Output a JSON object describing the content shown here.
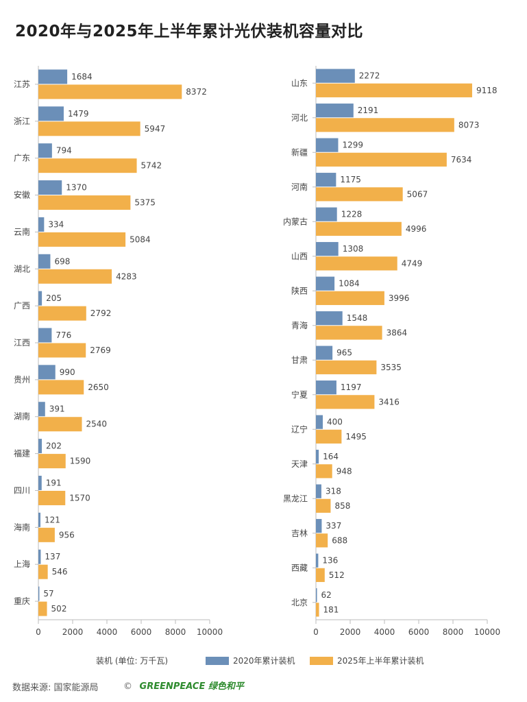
{
  "title": "2020年与2025年上半年累计光伏装机容量对比",
  "colors": {
    "series2020": "#6b8fb8",
    "series2025": "#f2b04a",
    "axis": "#bbbbbb",
    "label": "#444444"
  },
  "legend": {
    "axis_note": "装机 (单位: 万千瓦)",
    "series2020": "2020年累计装机",
    "series2025": "2025年上半年累计装机"
  },
  "footer": {
    "source": "数据来源: 国家能源局",
    "copyright": "©",
    "brand": "GREENPEACE 绿色和平"
  },
  "chart_data": [
    {
      "type": "bar",
      "orientation": "horizontal",
      "xlim": [
        0,
        10000
      ],
      "xticks": [
        0,
        2000,
        4000,
        6000,
        8000,
        10000
      ],
      "categories": [
        "江苏",
        "浙江",
        "广东",
        "安徽",
        "云南",
        "湖北",
        "广西",
        "江西",
        "贵州",
        "湖南",
        "福建",
        "四川",
        "海南",
        "上海",
        "重庆"
      ],
      "series": [
        {
          "name": "2020年累计装机",
          "values": [
            1684,
            1479,
            794,
            1370,
            334,
            698,
            205,
            776,
            990,
            391,
            202,
            191,
            121,
            137,
            57
          ]
        },
        {
          "name": "2025年上半年累计装机",
          "values": [
            8372,
            5947,
            5742,
            5375,
            5084,
            4283,
            2792,
            2769,
            2650,
            2540,
            1590,
            1570,
            956,
            546,
            502
          ]
        }
      ]
    },
    {
      "type": "bar",
      "orientation": "horizontal",
      "xlim": [
        0,
        10000
      ],
      "xticks": [
        0,
        2000,
        4000,
        6000,
        8000,
        10000
      ],
      "categories": [
        "山东",
        "河北",
        "新疆",
        "河南",
        "内蒙古",
        "山西",
        "陕西",
        "青海",
        "甘肃",
        "宁夏",
        "辽宁",
        "天津",
        "黑龙江",
        "吉林",
        "西藏",
        "北京"
      ],
      "series": [
        {
          "name": "2020年累计装机",
          "values": [
            2272,
            2191,
            1299,
            1175,
            1228,
            1308,
            1084,
            1548,
            965,
            1197,
            400,
            164,
            318,
            337,
            136,
            62
          ]
        },
        {
          "name": "2025年上半年累计装机",
          "values": [
            9118,
            8073,
            7634,
            5067,
            4996,
            4749,
            3996,
            3864,
            3535,
            3416,
            1495,
            948,
            858,
            688,
            512,
            181
          ]
        }
      ]
    }
  ]
}
